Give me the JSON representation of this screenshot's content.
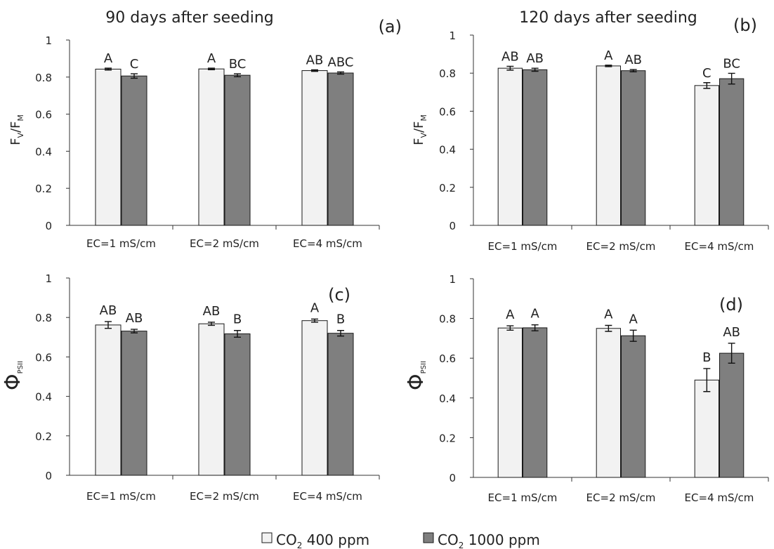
{
  "chart_data": [
    {
      "type": "bar",
      "panel_label": "(a)",
      "title": "90 days after seeding",
      "ylabel_main": "F",
      "ylabel_parts": [
        {
          "text": "F",
          "sub": "V"
        },
        {
          "text": "/F",
          "sub": "M"
        }
      ],
      "ylim": [
        0,
        1
      ],
      "yticks": [
        "0",
        "0.2",
        "0.4",
        "0.6",
        "0.8",
        "1"
      ],
      "yticks_values": [
        0,
        0.2,
        0.4,
        0.6,
        0.8,
        1
      ],
      "categories": [
        "EC=1 mS/cm",
        "EC=2 mS/cm",
        "EC=4 mS/cm"
      ],
      "series": [
        {
          "values": [
            0.843,
            0.844,
            0.835
          ],
          "errors": [
            0.005,
            0.004,
            0.004
          ],
          "letters": [
            "A",
            "A",
            "AB"
          ]
        },
        {
          "values": [
            0.806,
            0.81,
            0.822
          ],
          "errors": [
            0.012,
            0.008,
            0.006
          ],
          "letters": [
            "C",
            "BC",
            "ABC"
          ]
        }
      ]
    },
    {
      "type": "bar",
      "panel_label": "(b)",
      "title": "120 days after seeding",
      "ylabel_parts": [
        {
          "text": "F",
          "sub": "V"
        },
        {
          "text": "/F",
          "sub": "M"
        }
      ],
      "ylim": [
        0,
        1
      ],
      "yticks": [
        "0",
        "0.2",
        "0.4",
        "0.6",
        "0.8",
        "1"
      ],
      "yticks_values": [
        0,
        0.2,
        0.4,
        0.6,
        0.8,
        1
      ],
      "categories": [
        "EC=1 mS/cm",
        "EC=2 mS/cm",
        "EC=4 mS/cm"
      ],
      "series": [
        {
          "values": [
            0.826,
            0.838,
            0.735
          ],
          "errors": [
            0.01,
            0.004,
            0.015
          ],
          "letters": [
            "AB",
            "A",
            "C"
          ]
        },
        {
          "values": [
            0.818,
            0.813,
            0.771
          ],
          "errors": [
            0.008,
            0.006,
            0.028
          ],
          "letters": [
            "AB",
            "AB",
            "BC"
          ]
        }
      ]
    },
    {
      "type": "bar",
      "panel_label": "(c)",
      "title": "",
      "ylabel_parts": [
        {
          "text": "Φ",
          "sub": "PSII"
        }
      ],
      "ylim": [
        0,
        1
      ],
      "yticks": [
        "0",
        "0.2",
        "0.4",
        "0.6",
        "0.8",
        "1"
      ],
      "yticks_values": [
        0,
        0.2,
        0.4,
        0.6,
        0.8,
        1
      ],
      "categories": [
        "EC=1 mS/cm",
        "EC=2 mS/cm",
        "EC=4 mS/cm"
      ],
      "series": [
        {
          "values": [
            0.762,
            0.768,
            0.784
          ],
          "errors": [
            0.017,
            0.008,
            0.008
          ],
          "letters": [
            "AB",
            "AB",
            "A"
          ]
        },
        {
          "values": [
            0.731,
            0.717,
            0.72
          ],
          "errors": [
            0.009,
            0.017,
            0.014
          ],
          "letters": [
            "AB",
            "B",
            "B"
          ]
        }
      ]
    },
    {
      "type": "bar",
      "panel_label": "(d)",
      "title": "",
      "ylabel_parts": [
        {
          "text": "Φ",
          "sub": "PSII"
        }
      ],
      "ylim": [
        0,
        1
      ],
      "yticks": [
        "0",
        "0.2",
        "0.4",
        "0.6",
        "0.8",
        "1"
      ],
      "yticks_values": [
        0,
        0.2,
        0.4,
        0.6,
        0.8,
        1
      ],
      "categories": [
        "EC=1 mS/cm",
        "EC=2 mS/cm",
        "EC=4 mS/cm"
      ],
      "series": [
        {
          "values": [
            0.752,
            0.75,
            0.49
          ],
          "errors": [
            0.011,
            0.015,
            0.058
          ],
          "letters": [
            "A",
            "A",
            "B"
          ]
        },
        {
          "values": [
            0.753,
            0.713,
            0.625
          ],
          "errors": [
            0.015,
            0.028,
            0.05
          ],
          "letters": [
            "A",
            "A",
            "AB"
          ]
        }
      ]
    }
  ],
  "legend": {
    "items": [
      {
        "prefix": "CO",
        "sub": "2",
        "suffix": " 400 ppm"
      },
      {
        "prefix": "CO",
        "sub": "2",
        "suffix": " 1000 ppm"
      }
    ]
  },
  "colors": {
    "series_0": "#f2f2f2",
    "series_1": "#7f7f7f"
  }
}
